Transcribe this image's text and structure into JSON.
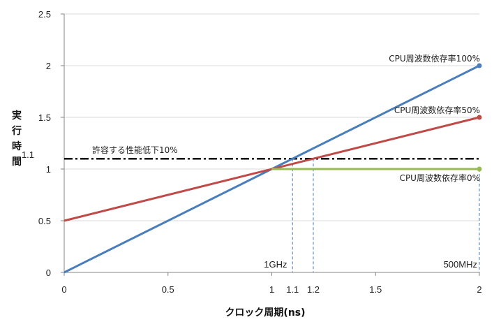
{
  "chart_data": {
    "type": "line",
    "title": "",
    "xlabel": "クロック周期(ns)",
    "ylabel": "実行時間",
    "xlim": [
      0,
      2
    ],
    "ylim": [
      0,
      2.5
    ],
    "grid": "horizontal",
    "x_ticks": [
      {
        "value": 0,
        "label": "0"
      },
      {
        "value": 0.5,
        "label": "0.5"
      },
      {
        "value": 1,
        "label": "1"
      },
      {
        "value": 1.1,
        "label": "1.1"
      },
      {
        "value": 1.2,
        "label": "1.2"
      },
      {
        "value": 1.5,
        "label": "1.5"
      },
      {
        "value": 2,
        "label": "2"
      }
    ],
    "y_ticks": [
      {
        "value": 0,
        "label": "0"
      },
      {
        "value": 0.5,
        "label": "0.5"
      },
      {
        "value": 1,
        "label": "1"
      },
      {
        "value": 1.1,
        "label": "1.1"
      },
      {
        "value": 1.5,
        "label": "1.5"
      },
      {
        "value": 2,
        "label": "2"
      },
      {
        "value": 2.5,
        "label": "2.5"
      }
    ],
    "series": [
      {
        "name": "CPU周波数依存率100%",
        "color": "#4a7ebb",
        "x": [
          0,
          2
        ],
        "y": [
          0,
          2
        ]
      },
      {
        "name": "CPU周波数依存率50%",
        "color": "#be4b48",
        "x": [
          0,
          2
        ],
        "y": [
          0.5,
          1.5
        ]
      },
      {
        "name": "CPU周波数依存率0%",
        "color": "#98b954",
        "x": [
          1,
          2
        ],
        "y": [
          1,
          1
        ]
      }
    ],
    "threshold": {
      "label": "許容する性能低下10%",
      "y": 1.1,
      "color": "#000000"
    },
    "drop_lines": [
      {
        "x": 1.1,
        "y": 1.1,
        "color": "#4a7ebb"
      },
      {
        "x": 1.2,
        "y": 1.1,
        "color": "#4a7ebb"
      },
      {
        "x": 2,
        "y": 1,
        "color": "#4a7ebb"
      }
    ],
    "annotations": [
      {
        "text": "1GHz",
        "x": 1
      },
      {
        "text": "500MHz",
        "x": 2
      }
    ]
  }
}
